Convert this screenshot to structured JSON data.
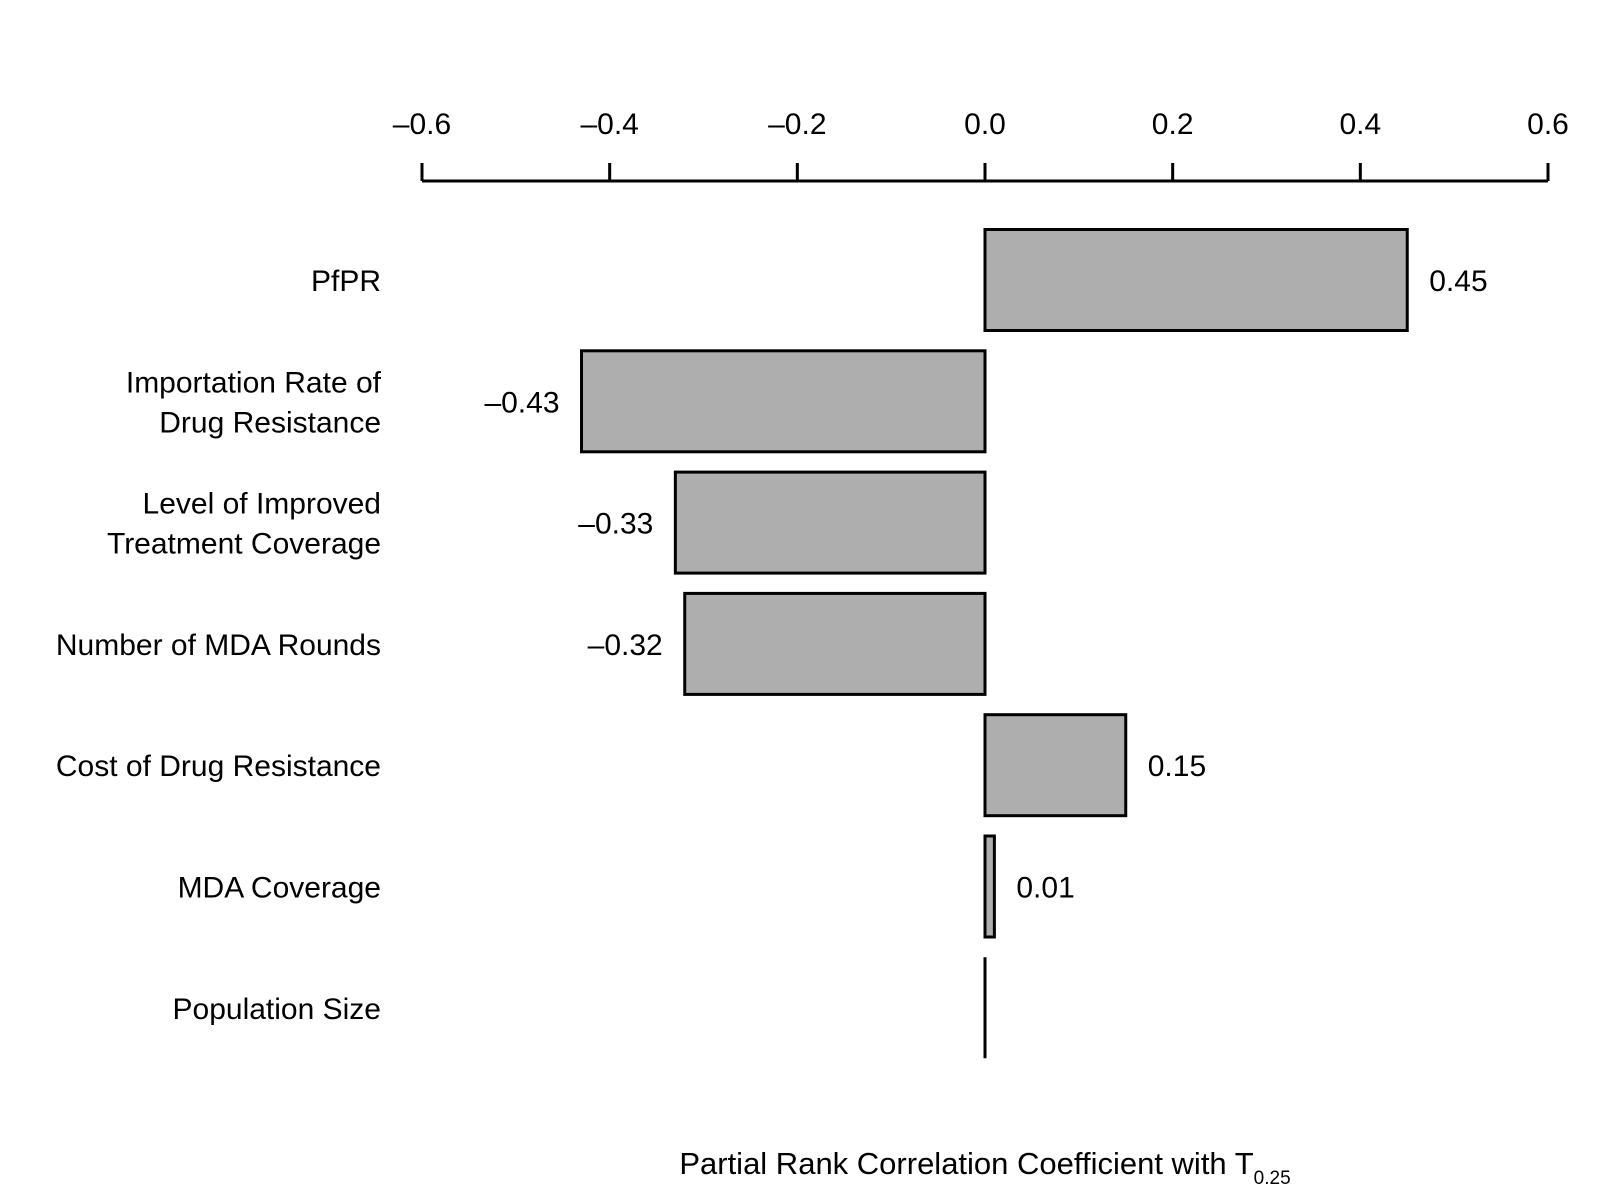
{
  "chart_data": {
    "type": "bar",
    "orientation": "horizontal",
    "categories": [
      [
        "PfPR"
      ],
      [
        "Importation Rate of",
        "Drug Resistance"
      ],
      [
        "Level of Improved",
        "Treatment Coverage"
      ],
      [
        "Number of MDA Rounds"
      ],
      [
        "Cost of Drug Resistance"
      ],
      [
        "MDA Coverage"
      ],
      [
        "Population Size"
      ]
    ],
    "values": [
      0.45,
      -0.43,
      -0.33,
      -0.32,
      0.15,
      0.01,
      0.0
    ],
    "value_labels": [
      "0.45",
      "–0.43",
      "–0.33",
      "–0.32",
      "0.15",
      "0.01",
      ""
    ],
    "xlim": [
      -0.6,
      0.6
    ],
    "x_ticks": [
      -0.6,
      -0.4,
      -0.2,
      0.0,
      0.2,
      0.4,
      0.6
    ],
    "x_tick_labels": [
      "–0.6",
      "–0.4",
      "–0.2",
      "0.0",
      "0.2",
      "0.4",
      "0.6"
    ],
    "axis_position": "top",
    "xlabel": {
      "main": "Partial Rank Correlation Coefficient with T",
      "subscript": "0.25"
    },
    "ylabel": "",
    "title": "",
    "grid": false,
    "legend": "none",
    "bar_color": "#aeaeae",
    "bar_edge_color": "#000000"
  }
}
